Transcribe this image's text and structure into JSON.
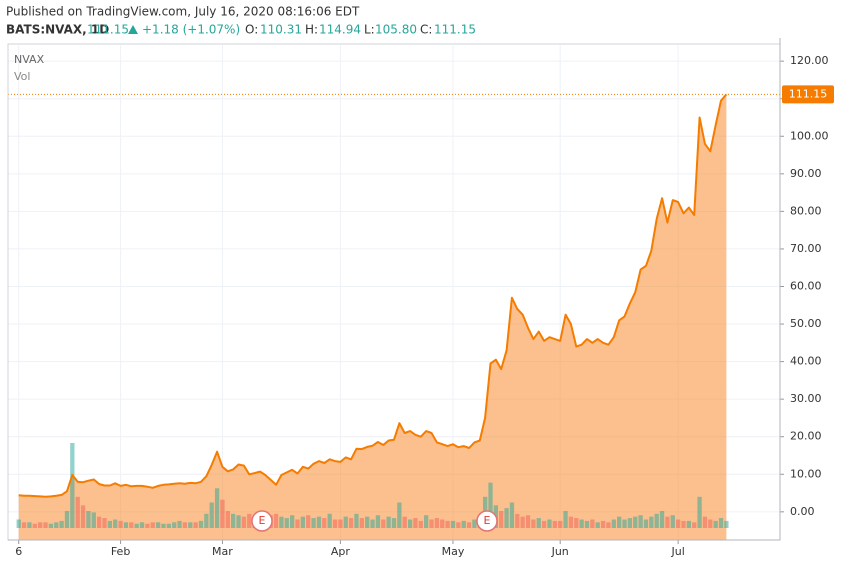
{
  "header": {
    "published": "Published on TradingView.com, July 16, 2020 08:16:06 EDT",
    "symbol": "BATS:NVAX, 1D",
    "last": "111.15",
    "change": "+1.18 (+1.07%)",
    "open_label": "O:",
    "open": "110.31",
    "high_label": "H:",
    "high": "114.94",
    "low_label": "L:",
    "low": "105.80",
    "close_label": "C:",
    "close": "111.15"
  },
  "legend": {
    "symbol": "NVAX",
    "volume": "Vol"
  },
  "earnings_markers": [
    "E",
    "E"
  ],
  "chart_data": {
    "type": "area",
    "categories": [
      "6",
      null,
      null,
      null,
      null,
      null,
      null,
      null,
      null,
      null,
      null,
      null,
      null,
      null,
      null,
      null,
      null,
      null,
      null,
      "Feb",
      null,
      null,
      null,
      null,
      null,
      null,
      null,
      null,
      null,
      null,
      null,
      null,
      null,
      null,
      null,
      null,
      null,
      null,
      "Mar",
      null,
      null,
      null,
      null,
      null,
      null,
      null,
      null,
      null,
      null,
      null,
      null,
      null,
      null,
      null,
      null,
      null,
      null,
      null,
      null,
      null,
      "Apr",
      null,
      null,
      null,
      null,
      null,
      null,
      null,
      null,
      null,
      null,
      null,
      null,
      null,
      null,
      null,
      null,
      null,
      null,
      null,
      null,
      "May",
      null,
      null,
      null,
      null,
      null,
      null,
      null,
      null,
      null,
      null,
      null,
      null,
      null,
      null,
      null,
      null,
      null,
      null,
      null,
      "Jun",
      null,
      null,
      null,
      null,
      null,
      null,
      null,
      null,
      null,
      null,
      null,
      null,
      null,
      null,
      null,
      null,
      null,
      null,
      null,
      null,
      null,
      "Jul",
      null,
      null,
      null,
      null,
      null,
      null,
      null,
      null,
      null
    ],
    "series": [
      {
        "name": "NVAX",
        "color": "#f57c00",
        "fill": "rgba(247,140,50,0.55)",
        "values": [
          4.4,
          4.3,
          4.3,
          4.2,
          4.1,
          4.0,
          4.1,
          4.3,
          4.5,
          5.5,
          9.8,
          8.0,
          7.9,
          8.3,
          8.6,
          7.4,
          7.0,
          7.0,
          7.6,
          6.9,
          7.2,
          6.8,
          6.9,
          6.9,
          6.7,
          6.4,
          6.9,
          7.2,
          7.3,
          7.5,
          7.6,
          7.5,
          7.7,
          7.6,
          8.0,
          9.5,
          12.5,
          16.0,
          12.0,
          10.8,
          11.3,
          12.6,
          12.3,
          10.0,
          10.3,
          10.7,
          9.8,
          8.5,
          7.2,
          9.8,
          10.5,
          11.2,
          10.2,
          12.0,
          11.5,
          12.8,
          13.5,
          13.0,
          14.0,
          13.5,
          13.3,
          14.5,
          14.0,
          16.8,
          16.7,
          17.3,
          17.6,
          18.6,
          17.8,
          19.0,
          19.2,
          23.6,
          21.0,
          21.5,
          20.5,
          20.0,
          21.5,
          21.0,
          18.5,
          18.0,
          17.5,
          18.0,
          17.2,
          17.5,
          17.0,
          18.5,
          19.0,
          25.0,
          39.5,
          40.5,
          38.0,
          43.0,
          57.0,
          54.0,
          52.5,
          49.0,
          46.0,
          48.0,
          45.5,
          46.5,
          46.0,
          45.5,
          52.5,
          50.0,
          44.0,
          44.5,
          46.0,
          45.0,
          46.0,
          45.0,
          44.5,
          46.5,
          51.0,
          52.0,
          55.5,
          58.5,
          64.5,
          65.5,
          69.5,
          78.0,
          83.5,
          77.0,
          83.0,
          82.5,
          79.5,
          81.0,
          79.0,
          105.0,
          98.0,
          96.0,
          103.0,
          109.5,
          111.15
        ]
      },
      {
        "name": "Vol",
        "up_color": "rgba(38,166,154,0.5)",
        "down_color": "rgba(239,83,80,0.45)",
        "values": [
          6,
          4,
          4,
          3,
          4,
          4,
          3,
          4,
          5,
          12,
          60,
          22,
          16,
          12,
          11,
          8,
          7,
          5,
          6,
          5,
          4,
          4,
          3,
          4,
          3,
          4,
          4,
          3,
          3,
          4,
          5,
          4,
          4,
          4,
          5,
          10,
          18,
          28,
          20,
          12,
          10,
          9,
          8,
          10,
          7,
          8,
          6,
          9,
          10,
          8,
          7,
          9,
          6,
          8,
          9,
          7,
          8,
          7,
          10,
          6,
          6,
          8,
          7,
          10,
          7,
          8,
          6,
          9,
          6,
          8,
          7,
          18,
          8,
          6,
          7,
          5,
          9,
          6,
          7,
          6,
          5,
          5,
          4,
          5,
          4,
          6,
          8,
          22,
          32,
          16,
          12,
          14,
          18,
          10,
          8,
          9,
          6,
          7,
          5,
          6,
          5,
          5,
          12,
          8,
          7,
          6,
          5,
          6,
          4,
          5,
          4,
          6,
          8,
          6,
          7,
          8,
          9,
          6,
          8,
          10,
          12,
          8,
          9,
          6,
          5,
          5,
          4,
          22,
          8,
          6,
          5,
          7,
          5
        ]
      }
    ],
    "price_label": "111.15",
    "ylim": [
      -7.5,
      124.3
    ],
    "yticks": [
      {
        "value": 0,
        "label": "0.00"
      },
      {
        "value": 10,
        "label": "10.00"
      },
      {
        "value": 20,
        "label": "20.00"
      },
      {
        "value": 30,
        "label": "30.00"
      },
      {
        "value": 40,
        "label": "40.00"
      },
      {
        "value": 50,
        "label": "50.00"
      },
      {
        "value": 60,
        "label": "60.00"
      },
      {
        "value": 70,
        "label": "70.00"
      },
      {
        "value": 80,
        "label": "80.00"
      },
      {
        "value": 90,
        "label": "90.00"
      },
      {
        "value": 100,
        "label": "100.00"
      },
      {
        "value": 110,
        "label": "110.00"
      },
      {
        "value": 120,
        "label": "120.00"
      }
    ],
    "grid": true
  }
}
